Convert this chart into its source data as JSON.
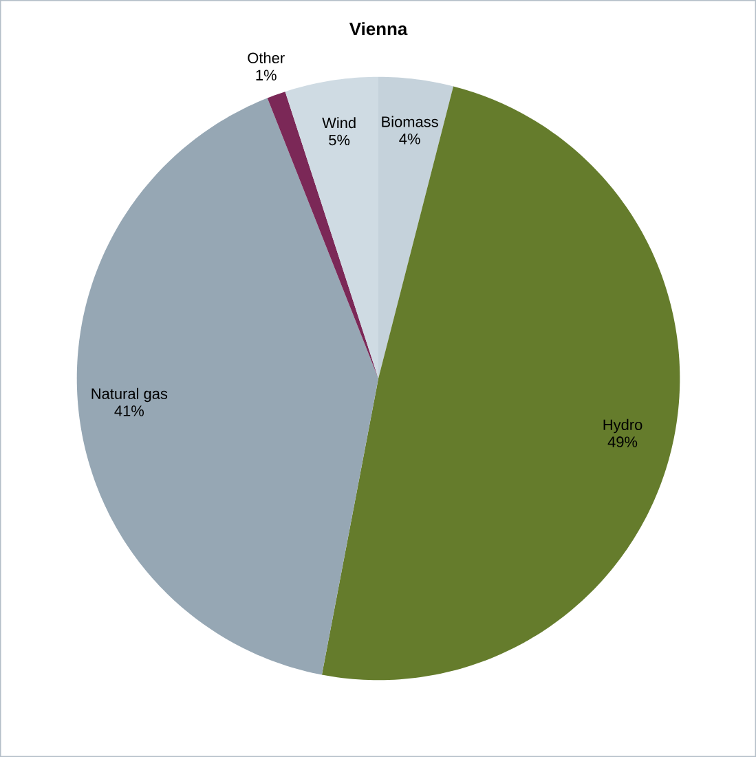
{
  "chart_data": {
    "type": "pie",
    "title": "Vienna",
    "categories": [
      "Biomass",
      "Hydro",
      "Natural gas",
      "Other",
      "Wind"
    ],
    "values": [
      4,
      49,
      41,
      1,
      5
    ],
    "colors": [
      "#c5d2db",
      "#657c2c",
      "#96a7b4",
      "#7b2857",
      "#cfdbe3"
    ],
    "value_labels": [
      "4%",
      "49%",
      "41%",
      "1%",
      "5%"
    ]
  }
}
